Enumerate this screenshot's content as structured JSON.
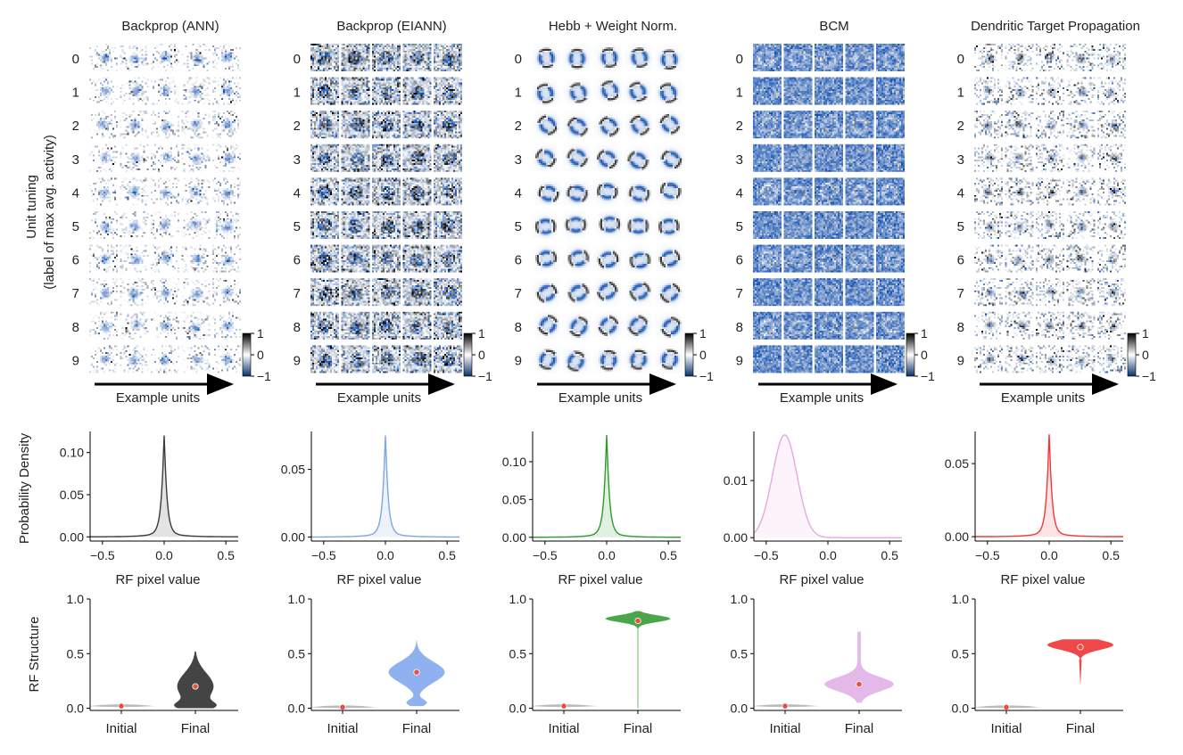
{
  "colorbar": {
    "max_label": "1",
    "mid_label": "0",
    "min_label": "−1"
  },
  "common": {
    "grid_ylabel_line1": "Unit tuning",
    "grid_ylabel_line2": "(label of max avg. activity)",
    "grid_xlabel": "Example units",
    "density_xlabel": "RF pixel value",
    "density_ylabel": "Probability Density",
    "violin_ylabel": "RF Structure",
    "row_labels": [
      "0",
      "1",
      "2",
      "3",
      "4",
      "5",
      "6",
      "7",
      "8",
      "9"
    ],
    "violin_categories": [
      "Initial",
      "Final"
    ]
  },
  "chart_data": [
    {
      "type": "image_grid",
      "title": "Backprop (ANN)",
      "rows": 10,
      "cols": 5,
      "style": "sparse",
      "colorscale": {
        "min": -1,
        "mid": 0,
        "max": 1,
        "low_color": "#08306b",
        "mid_color": "#ffffff",
        "high_color": "#000000"
      }
    },
    {
      "type": "image_grid",
      "title": "Backprop (EIANN)",
      "rows": 10,
      "cols": 5,
      "style": "noisy_mixed",
      "colorscale": {
        "min": -1,
        "mid": 0,
        "max": 1
      }
    },
    {
      "type": "image_grid",
      "title": "Hebb + Weight Norm.",
      "rows": 10,
      "cols": 5,
      "style": "smooth_digits",
      "colorscale": {
        "min": -1,
        "mid": 0,
        "max": 1
      }
    },
    {
      "type": "image_grid",
      "title": "BCM",
      "rows": 10,
      "cols": 5,
      "style": "dense_blue",
      "colorscale": {
        "min": -1,
        "mid": 0,
        "max": 1
      }
    },
    {
      "type": "image_grid",
      "title": "Dendritic Target Propagation",
      "rows": 10,
      "cols": 5,
      "style": "sparse_light",
      "colorscale": {
        "min": -1,
        "mid": 0,
        "max": 1
      }
    },
    {
      "type": "area",
      "series": [
        {
          "name": "Backprop (ANN)",
          "distribution": "laplace",
          "location": 0.0,
          "peak_density": 0.12
        }
      ],
      "xlim": [
        -0.6,
        0.6
      ],
      "ylim": [
        -0.005,
        0.125
      ],
      "xticks": [
        -0.5,
        0.0,
        0.5
      ],
      "xtick_labels": [
        "−0.5",
        "0.0",
        "0.5"
      ],
      "yticks": [
        0.0,
        0.05,
        0.1
      ],
      "ytick_labels": [
        "0.00",
        "0.05",
        "0.10"
      ],
      "color": "#3a3a3a"
    },
    {
      "type": "area",
      "series": [
        {
          "name": "Backprop (EIANN)",
          "distribution": "laplace",
          "location": 0.0,
          "peak_density": 0.075
        }
      ],
      "xlim": [
        -0.6,
        0.6
      ],
      "ylim": [
        -0.003,
        0.078
      ],
      "xticks": [
        -0.5,
        0.0,
        0.5
      ],
      "xtick_labels": [
        "−0.5",
        "0.0",
        "0.5"
      ],
      "yticks": [
        0.0,
        0.05
      ],
      "ytick_labels": [
        "0.00",
        "0.05"
      ],
      "color": "#7ea6e8"
    },
    {
      "type": "area",
      "series": [
        {
          "name": "Hebb + Weight Norm.",
          "distribution": "laplace",
          "location": 0.0,
          "peak_density": 0.135
        }
      ],
      "xlim": [
        -0.6,
        0.6
      ],
      "ylim": [
        -0.005,
        0.14
      ],
      "xticks": [
        -0.5,
        0.0,
        0.5
      ],
      "xtick_labels": [
        "−0.5",
        "0.0",
        "0.5"
      ],
      "yticks": [
        0.0,
        0.05,
        0.1
      ],
      "ytick_labels": [
        "0.00",
        "0.05",
        "0.10"
      ],
      "color": "#2e9a2e"
    },
    {
      "type": "area",
      "series": [
        {
          "name": "BCM",
          "distribution": "gaussian",
          "location": -0.35,
          "peak_density": 0.018
        }
      ],
      "xlim": [
        -0.6,
        0.6
      ],
      "ylim": [
        -0.0006,
        0.0186
      ],
      "xticks": [
        -0.5,
        0.0,
        0.5
      ],
      "xtick_labels": [
        "−0.5",
        "0.0",
        "0.5"
      ],
      "yticks": [
        0.0,
        0.01
      ],
      "ytick_labels": [
        "0.00",
        "0.01"
      ],
      "color": "#e8a8e0"
    },
    {
      "type": "area",
      "series": [
        {
          "name": "Dendritic Target Propagation",
          "distribution": "laplace",
          "location": 0.0,
          "peak_density": 0.07
        }
      ],
      "xlim": [
        -0.6,
        0.6
      ],
      "ylim": [
        -0.003,
        0.072
      ],
      "xticks": [
        -0.5,
        0.0,
        0.5
      ],
      "xtick_labels": [
        "−0.5",
        "0.0",
        "0.5"
      ],
      "yticks": [
        0.0,
        0.05
      ],
      "ytick_labels": [
        "0.00",
        "0.05"
      ],
      "color": "#ee3a3a"
    },
    {
      "type": "violin",
      "series": [
        {
          "name": "Backprop (ANN)",
          "initial_median": 0.02,
          "final_median": 0.2,
          "final_range": [
            0.0,
            0.52
          ]
        }
      ],
      "categories": [
        "Initial",
        "Final"
      ],
      "ylim": [
        -0.02,
        1.0
      ],
      "yticks": [
        0.0,
        0.5,
        1.0
      ],
      "ytick_labels": [
        "0.0",
        "0.5",
        "1.0"
      ],
      "color": "#444444",
      "initial_color": "#bbbbbb",
      "median_color": "#e85040"
    },
    {
      "type": "violin",
      "series": [
        {
          "name": "Backprop (EIANN)",
          "initial_median": 0.01,
          "final_median": 0.33,
          "final_range": [
            0.02,
            0.62
          ]
        }
      ],
      "categories": [
        "Initial",
        "Final"
      ],
      "ylim": [
        -0.02,
        1.0
      ],
      "yticks": [
        0.0,
        0.5,
        1.0
      ],
      "ytick_labels": [
        "0.0",
        "0.5",
        "1.0"
      ],
      "color": "#8fb1f0",
      "initial_color": "#bbbbbb",
      "median_color": "#e85040"
    },
    {
      "type": "violin",
      "series": [
        {
          "name": "Hebb + Weight Norm.",
          "initial_median": 0.02,
          "final_median": 0.8,
          "final_range": [
            0.0,
            0.89
          ]
        }
      ],
      "categories": [
        "Initial",
        "Final"
      ],
      "ylim": [
        -0.02,
        1.0
      ],
      "yticks": [
        0.0,
        0.5,
        1.0
      ],
      "ytick_labels": [
        "0.0",
        "0.5",
        "1.0"
      ],
      "color": "#4aa64a",
      "initial_color": "#bbbbbb",
      "median_color": "#e85040"
    },
    {
      "type": "violin",
      "series": [
        {
          "name": "BCM",
          "initial_median": 0.02,
          "final_median": 0.22,
          "final_range": [
            0.05,
            0.7
          ]
        }
      ],
      "categories": [
        "Initial",
        "Final"
      ],
      "ylim": [
        -0.02,
        1.0
      ],
      "yticks": [
        0.0,
        0.5,
        1.0
      ],
      "ytick_labels": [
        "0.0",
        "0.5",
        "1.0"
      ],
      "color": "#e4b8e8",
      "initial_color": "#bbbbbb",
      "median_color": "#e85040"
    },
    {
      "type": "violin",
      "series": [
        {
          "name": "Dendritic Target Propagation",
          "initial_median": 0.01,
          "final_median": 0.56,
          "final_range": [
            0.2,
            0.63
          ]
        }
      ],
      "categories": [
        "Initial",
        "Final"
      ],
      "ylim": [
        -0.02,
        1.0
      ],
      "yticks": [
        0.0,
        0.5,
        1.0
      ],
      "ytick_labels": [
        "0.0",
        "0.5",
        "1.0"
      ],
      "color": "#f04848",
      "initial_color": "#bbbbbb",
      "median_color": "#e85040"
    }
  ]
}
